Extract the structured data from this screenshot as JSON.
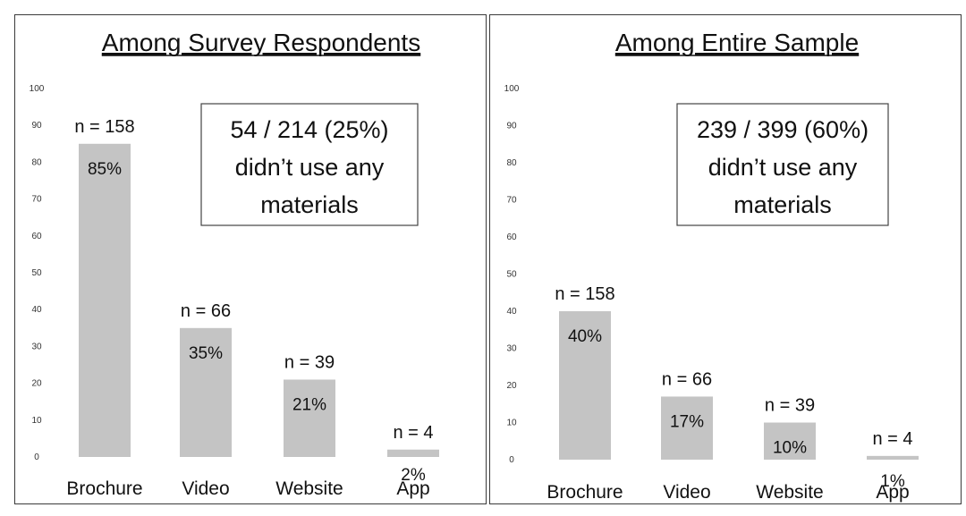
{
  "chart_data": [
    {
      "type": "bar",
      "title": "Among Survey Respondents",
      "categories": [
        "Brochure",
        "Video",
        "Website",
        "App"
      ],
      "values": [
        85,
        35,
        21,
        2
      ],
      "count_labels": [
        "n = 158",
        "n = 66",
        "n = 39",
        "n = 4"
      ],
      "value_labels": [
        "85%",
        "35%",
        "21%",
        "2%"
      ],
      "ylim": [
        0,
        100
      ],
      "yticks": [
        0,
        10,
        20,
        30,
        40,
        50,
        60,
        70,
        80,
        90,
        100
      ],
      "annotation": [
        "54 / 214 (25%)",
        "didn’t use any",
        "materials"
      ],
      "grid": false,
      "bar_color": "#c4c4c4"
    },
    {
      "type": "bar",
      "title": "Among Entire Sample",
      "categories": [
        "Brochure",
        "Video",
        "Website",
        "App"
      ],
      "values": [
        40,
        17,
        10,
        1
      ],
      "count_labels": [
        "n = 158",
        "n = 66",
        "n = 39",
        "n = 4"
      ],
      "value_labels": [
        "40%",
        "17%",
        "10%",
        "1%"
      ],
      "ylim": [
        0,
        100
      ],
      "yticks": [
        0,
        10,
        20,
        30,
        40,
        50,
        60,
        70,
        80,
        90,
        100
      ],
      "annotation": [
        "239 / 399 (60%)",
        "didn’t use any",
        "materials"
      ],
      "grid": false,
      "bar_color": "#c4c4c4"
    }
  ]
}
